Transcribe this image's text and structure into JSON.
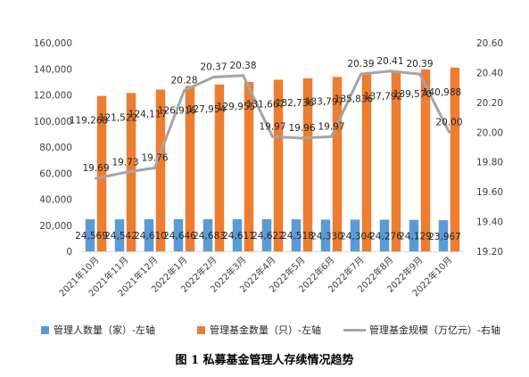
{
  "caption": "图 1  私募基金管理人存续情况趋势",
  "chart_data": {
    "type": "bar",
    "categories": [
      "2021年10月",
      "2021年11月",
      "2021年12月",
      "2022年1月",
      "2022年2月",
      "2022年3月",
      "2022年4月",
      "2022年5月",
      "2022年6月",
      "2022年7月",
      "2022年8月",
      "2022年9月",
      "2022年10月"
    ],
    "series": [
      {
        "name": "管理人数量（家）-左轴",
        "type": "bar",
        "axis": "left",
        "color": "#5B9BD5",
        "values": [
          24569,
          24542,
          24610,
          24646,
          24683,
          24611,
          24622,
          24518,
          24330,
          24304,
          24276,
          24129,
          23967
        ],
        "labels": [
          "24,569",
          "24,542",
          "24,610",
          "24,646",
          "24,683",
          "24,611",
          "24,622",
          "24,518",
          "24,330",
          "24,304",
          "24,276",
          "24,129",
          "23,967"
        ]
      },
      {
        "name": "管理基金数量（只）-左轴",
        "type": "bar",
        "axis": "left",
        "color": "#ED7D31",
        "values": [
          119268,
          121522,
          124117,
          126916,
          127954,
          129955,
          131667,
          132736,
          133797,
          135836,
          137792,
          139570,
          140988
        ],
        "labels": [
          "119,268",
          "121,522",
          "124,117",
          "126,916",
          "127,954",
          "129,955",
          "131,667",
          "132,736",
          "133,797",
          "135,836",
          "137,792",
          "139,570",
          "140,988"
        ]
      },
      {
        "name": "管理基金规模（万亿元）-右轴",
        "type": "line",
        "axis": "right",
        "color": "#A5A5A5",
        "values": [
          19.69,
          19.73,
          19.76,
          20.28,
          20.37,
          20.38,
          19.97,
          19.96,
          19.97,
          20.39,
          20.41,
          20.39,
          20.0
        ],
        "labels": [
          "19.69",
          "19.73",
          "19.76",
          "20.28",
          "20.37",
          "20.38",
          "19.97",
          "19.96",
          "19.97",
          "20.39",
          "20.41",
          "20.39",
          "20.00"
        ]
      }
    ],
    "y_left": {
      "min": 0,
      "max": 160000,
      "ticks": [
        "0",
        "20,000",
        "40,000",
        "60,000",
        "80,000",
        "100,000",
        "120,000",
        "140,000",
        "160,000"
      ]
    },
    "y_right": {
      "min": 19.2,
      "max": 20.6,
      "ticks": [
        "19.20",
        "19.40",
        "19.60",
        "19.80",
        "20.00",
        "20.20",
        "20.40",
        "20.60"
      ]
    },
    "grid": false,
    "legend_position": "bottom"
  }
}
